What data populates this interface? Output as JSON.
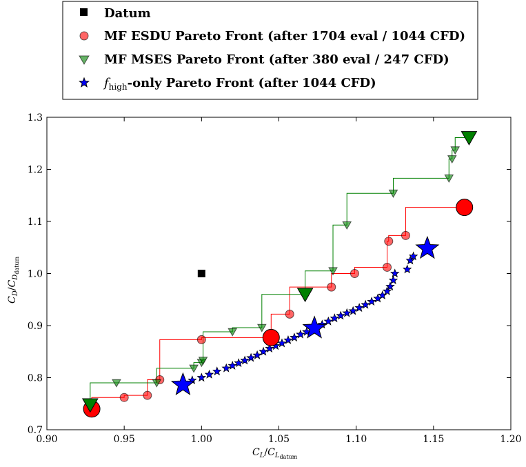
{
  "chart_data": {
    "type": "scatter",
    "xlabel": "C_L/C_L_datum",
    "ylabel": "C_D/C_D_datum",
    "xlim": [
      0.9,
      1.2
    ],
    "ylim": [
      0.7,
      1.3
    ],
    "x_ticks": [
      "0.90",
      "0.95",
      "1.00",
      "1.05",
      "1.10",
      "1.15",
      "1.20"
    ],
    "y_ticks": [
      "0.7",
      "0.8",
      "0.9",
      "1.0",
      "1.1",
      "1.2",
      "1.3"
    ],
    "grid": false,
    "legend_position": "top, above plot",
    "legend": [
      {
        "key": "datum",
        "label": "Datum",
        "marker": "square",
        "color": "#000000"
      },
      {
        "key": "esdu",
        "label": "MF ESDU Pareto Front (after 1704 eval / 1044 CFD)",
        "marker": "circle",
        "color": "#ff0000"
      },
      {
        "key": "mses",
        "label": "MF MSES Pareto Front (after 380 eval / 247 CFD)",
        "marker": "triangle-down",
        "color": "#008000"
      },
      {
        "key": "high",
        "label_prefix": "f",
        "label_sub": "high",
        "label_suffix": "-only Pareto Front (after 1044 CFD)",
        "marker": "star",
        "color": "#0000ff"
      }
    ],
    "series": [
      {
        "name": "Datum",
        "key": "datum",
        "points": [
          [
            1.0,
            1.0
          ]
        ]
      },
      {
        "name": "MF ESDU Pareto Front (after 1704 eval / 1044 CFD)",
        "key": "esdu",
        "points": [
          [
            0.929,
            0.74
          ],
          [
            0.95,
            0.762
          ],
          [
            0.965,
            0.766
          ],
          [
            0.973,
            0.796
          ],
          [
            1.0,
            0.873
          ],
          [
            1.045,
            0.877
          ],
          [
            1.057,
            0.922
          ],
          [
            1.084,
            0.974
          ],
          [
            1.099,
            1.0
          ],
          [
            1.12,
            1.012
          ],
          [
            1.121,
            1.062
          ],
          [
            1.132,
            1.073
          ],
          [
            1.17,
            1.127
          ]
        ],
        "highlight": [
          [
            0.929,
            0.74
          ],
          [
            1.045,
            0.877
          ],
          [
            1.17,
            1.127
          ]
        ]
      },
      {
        "name": "MF MSES Pareto Front (after 380 eval / 247 CFD)",
        "key": "mses",
        "points": [
          [
            0.928,
            0.748
          ],
          [
            0.945,
            0.79
          ],
          [
            0.971,
            0.79
          ],
          [
            0.995,
            0.818
          ],
          [
            1.0,
            0.829
          ],
          [
            1.001,
            0.833
          ],
          [
            1.02,
            0.888
          ],
          [
            1.039,
            0.896
          ],
          [
            1.067,
            0.96
          ],
          [
            1.085,
            1.005
          ],
          [
            1.094,
            1.093
          ],
          [
            1.124,
            1.154
          ],
          [
            1.16,
            1.183
          ],
          [
            1.162,
            1.22
          ],
          [
            1.164,
            1.237
          ],
          [
            1.173,
            1.261
          ]
        ],
        "highlight": [
          [
            0.928,
            0.748
          ],
          [
            1.067,
            0.96
          ],
          [
            1.173,
            1.261
          ]
        ]
      },
      {
        "name": "f_high-only Pareto Front (after 1044 CFD)",
        "key": "high",
        "points": [
          [
            0.988,
            0.786
          ],
          [
            0.994,
            0.795
          ],
          [
            1.0,
            0.8
          ],
          [
            1.005,
            0.806
          ],
          [
            1.01,
            0.812
          ],
          [
            1.016,
            0.818
          ],
          [
            1.02,
            0.823
          ],
          [
            1.024,
            0.828
          ],
          [
            1.028,
            0.833
          ],
          [
            1.032,
            0.838
          ],
          [
            1.036,
            0.843
          ],
          [
            1.04,
            0.85
          ],
          [
            1.044,
            0.856
          ],
          [
            1.048,
            0.861
          ],
          [
            1.052,
            0.866
          ],
          [
            1.056,
            0.872
          ],
          [
            1.06,
            0.877
          ],
          [
            1.064,
            0.883
          ],
          [
            1.068,
            0.888
          ],
          [
            1.073,
            0.895
          ],
          [
            1.078,
            0.902
          ],
          [
            1.082,
            0.908
          ],
          [
            1.086,
            0.914
          ],
          [
            1.09,
            0.919
          ],
          [
            1.094,
            0.924
          ],
          [
            1.098,
            0.928
          ],
          [
            1.102,
            0.934
          ],
          [
            1.106,
            0.94
          ],
          [
            1.11,
            0.946
          ],
          [
            1.114,
            0.952
          ],
          [
            1.117,
            0.958
          ],
          [
            1.12,
            0.966
          ],
          [
            1.122,
            0.975
          ],
          [
            1.124,
            0.987
          ],
          [
            1.125,
            1.0
          ],
          [
            1.133,
            1.008
          ],
          [
            1.135,
            1.025
          ],
          [
            1.137,
            1.033
          ],
          [
            1.146,
            1.048
          ]
        ],
        "highlight": [
          [
            0.988,
            0.786
          ],
          [
            1.073,
            0.895
          ],
          [
            1.146,
            1.048
          ]
        ]
      }
    ]
  }
}
